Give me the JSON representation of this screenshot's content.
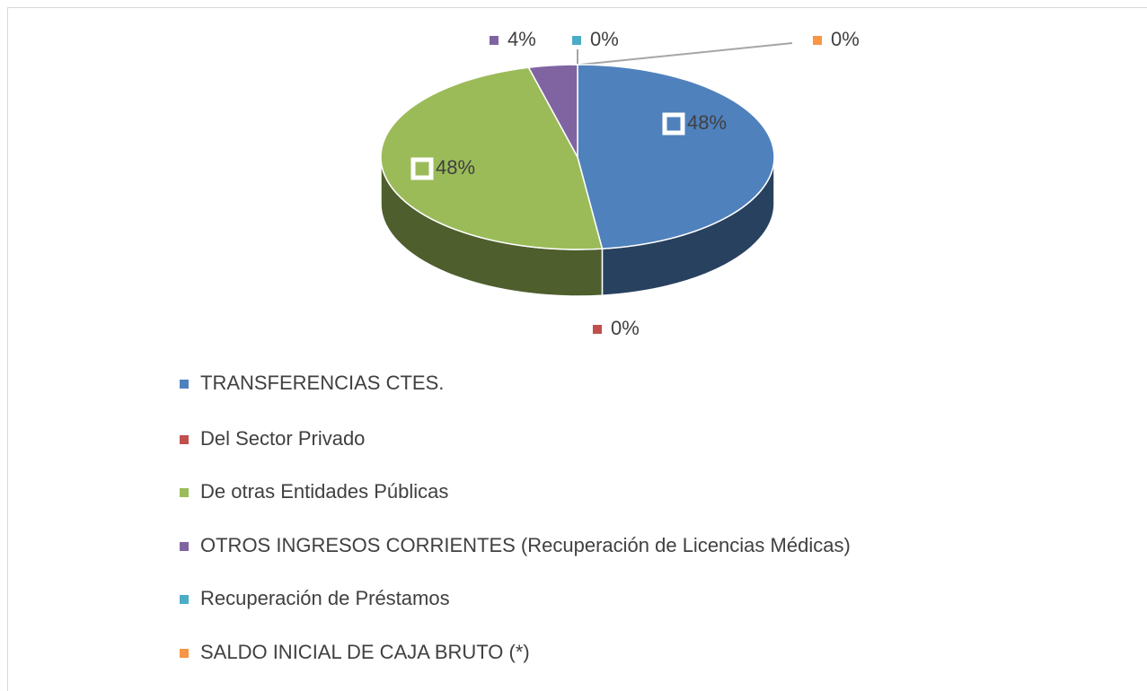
{
  "chart_data": {
    "type": "pie",
    "categories": [
      "TRANSFERENCIAS CTES.",
      "Del Sector Privado",
      "De otras Entidades Públicas",
      "OTROS INGRESOS CORRIENTES (Recuperación de Licencias Médicas)",
      "Recuperación de Préstamos",
      "SALDO INICIAL DE CAJA BRUTO (*)"
    ],
    "values": [
      48,
      0,
      48,
      4,
      0,
      0
    ],
    "value_labels": [
      "48%",
      "0%",
      "48%",
      "4%",
      "0%",
      "0%"
    ],
    "colors": [
      "#4f81bd",
      "#c0504d",
      "#9bbb59",
      "#8064a2",
      "#4bacc6",
      "#f79646"
    ]
  }
}
